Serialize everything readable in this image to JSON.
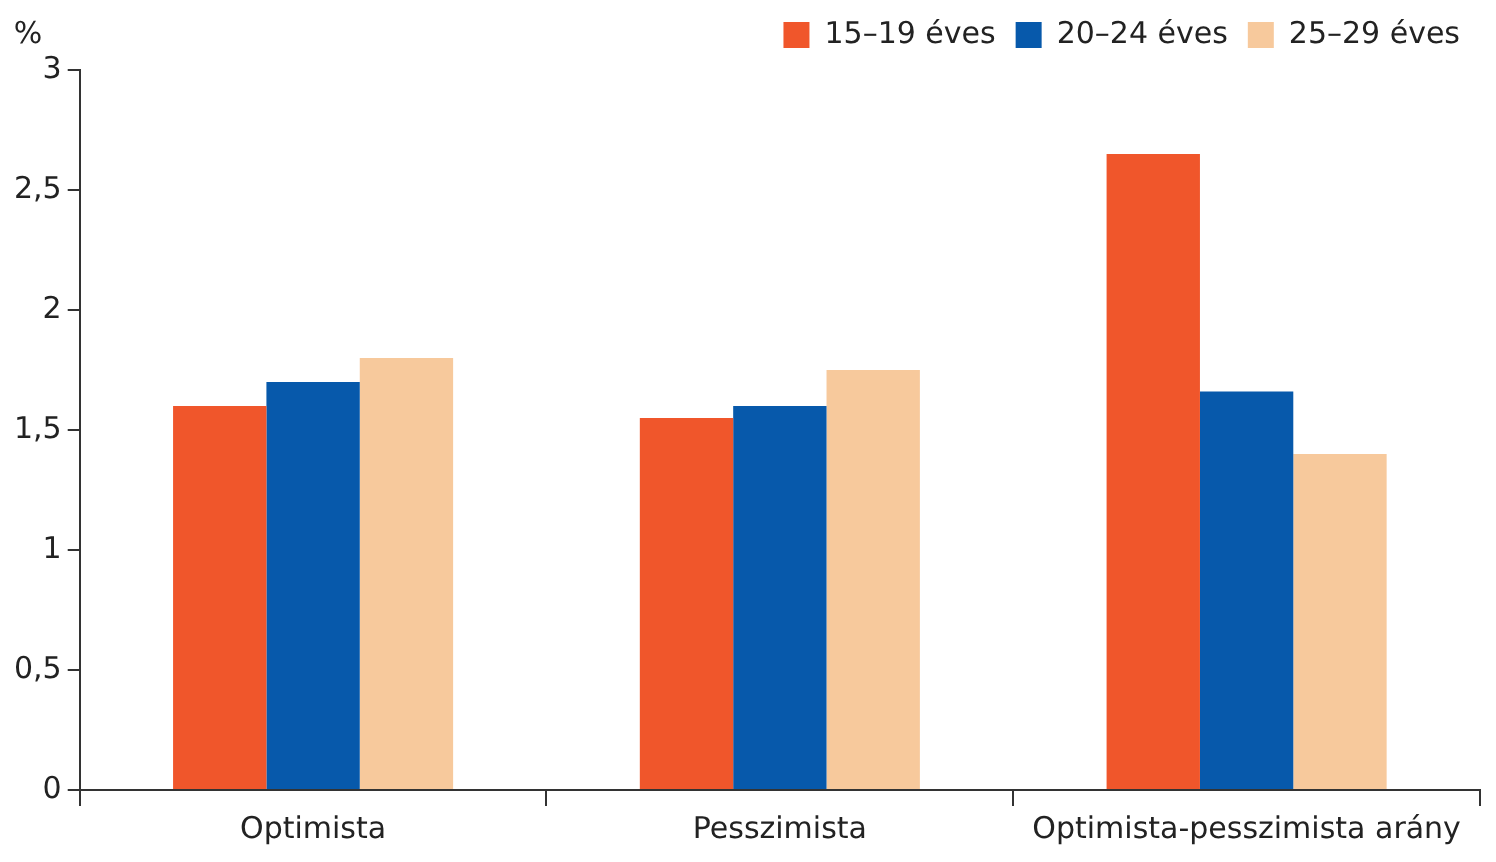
{
  "chart_data": {
    "type": "bar",
    "ylabel": "%",
    "categories": [
      "Optimista",
      "Pesszimista",
      "Optimista-pesszimista arány"
    ],
    "series": [
      {
        "name": "15–19 éves",
        "color": "#f0562b",
        "values": [
          1.6,
          1.55,
          2.65
        ]
      },
      {
        "name": "20–24 éves",
        "color": "#0759ab",
        "values": [
          1.7,
          1.6,
          1.66
        ]
      },
      {
        "name": "25–29 éves",
        "color": "#f7c99c",
        "values": [
          1.8,
          1.75,
          1.4
        ]
      }
    ],
    "ylim": [
      0,
      3
    ],
    "yticks": [
      0,
      {
        "value": 0.5,
        "label": "0,5"
      },
      1,
      {
        "value": 1.5,
        "label": "1,5"
      },
      2,
      {
        "value": 2.5,
        "label": "2,5"
      },
      3
    ],
    "legend": "top right"
  }
}
